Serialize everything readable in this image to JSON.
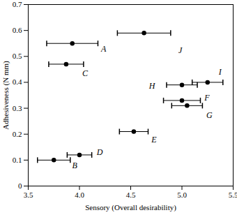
{
  "chart_data": {
    "type": "scatter",
    "x_label": "Sensory (Overall desirability)",
    "y_label": "Adhesiveness (N mm)",
    "points": [
      "A",
      "B",
      "C",
      "D",
      "E",
      "F",
      "G",
      "H",
      "I",
      "J"
    ],
    "x": [
      3.93,
      3.75,
      3.87,
      4.0,
      4.53,
      5.0,
      5.05,
      5.0,
      5.25,
      4.63
    ],
    "values": [
      0.55,
      0.1,
      0.47,
      0.12,
      0.21,
      0.33,
      0.31,
      0.39,
      0.4,
      0.59
    ],
    "xerr": [
      0.25,
      0.16,
      0.17,
      0.12,
      0.14,
      0.18,
      0.15,
      0.15,
      0.15,
      0.26
    ],
    "color": "#000000",
    "marker": "circle",
    "xlim": [
      3.5,
      5.5
    ],
    "xticks": [
      3.5,
      {
        "value": 4,
        "label": "4.0"
      },
      4.5,
      {
        "value": 5,
        "label": "5.0"
      },
      5.5
    ],
    "ylim": [
      0,
      0.7
    ],
    "yticks": [
      0,
      0.1,
      0.2,
      0.3,
      0.4,
      0.5,
      0.6,
      0.7
    ],
    "grid": false
  }
}
